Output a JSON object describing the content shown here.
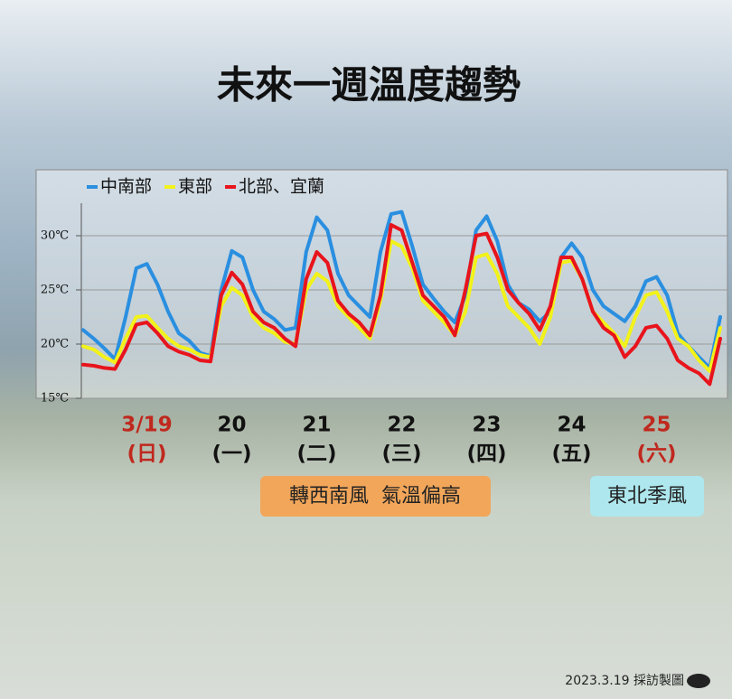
{
  "chart_data": {
    "type": "line",
    "title": "未來一週溫度趨勢",
    "categories": [
      null,
      null,
      null,
      null,
      null,
      null,
      "3/19",
      null,
      null,
      null,
      null,
      null,
      null,
      null,
      "20",
      null,
      null,
      null,
      null,
      null,
      null,
      null,
      "21",
      null,
      null,
      null,
      null,
      null,
      null,
      null,
      "22",
      null,
      null,
      null,
      null,
      null,
      null,
      null,
      "23",
      null,
      null,
      null,
      null,
      null,
      null,
      null,
      "24",
      null,
      null,
      null,
      null,
      null,
      null,
      null,
      "25",
      null,
      null,
      null,
      null,
      null,
      null
    ],
    "category_sublabels": [
      null,
      null,
      null,
      null,
      null,
      null,
      "(日)",
      null,
      null,
      null,
      null,
      null,
      null,
      null,
      "(一)",
      null,
      null,
      null,
      null,
      null,
      null,
      null,
      "(二)",
      null,
      null,
      null,
      null,
      null,
      null,
      null,
      "(三)",
      null,
      null,
      null,
      null,
      null,
      null,
      null,
      "(四)",
      null,
      null,
      null,
      null,
      null,
      null,
      null,
      "(五)",
      null,
      null,
      null,
      null,
      null,
      null,
      null,
      "(六)",
      null,
      null,
      null,
      null,
      null,
      null
    ],
    "category_colors": [
      null,
      null,
      null,
      null,
      null,
      null,
      "#c0281e",
      null,
      null,
      null,
      null,
      null,
      null,
      null,
      "#111111",
      null,
      null,
      null,
      null,
      null,
      null,
      null,
      "#111111",
      null,
      null,
      null,
      null,
      null,
      null,
      null,
      "#111111",
      null,
      null,
      null,
      null,
      null,
      null,
      null,
      "#111111",
      null,
      null,
      null,
      null,
      null,
      null,
      null,
      "#111111",
      null,
      null,
      null,
      null,
      null,
      null,
      null,
      "#c0281e",
      null,
      null,
      null,
      null,
      null,
      null
    ],
    "series": [
      {
        "name": "中南部",
        "color": "#2a8fe0",
        "values": [
          21.3,
          20.5,
          19.6,
          18.6,
          22.5,
          27.0,
          27.4,
          25.5,
          23.0,
          21.0,
          20.3,
          19.2,
          18.9,
          25.0,
          28.6,
          28.0,
          25.0,
          23.0,
          22.3,
          21.3,
          21.5,
          28.5,
          31.7,
          30.5,
          26.5,
          24.5,
          23.5,
          22.5,
          28.5,
          32.0,
          32.2,
          29.0,
          25.5,
          24.2,
          23.0,
          22.0,
          24.5,
          30.5,
          31.8,
          29.5,
          25.5,
          23.8,
          23.2,
          22.1,
          23.0,
          28.0,
          29.3,
          28.0,
          25.0,
          23.5,
          22.8,
          22.1,
          23.5,
          25.8,
          26.2,
          24.5,
          21.0,
          19.8,
          18.8,
          17.8,
          22.5
        ]
      },
      {
        "name": "東部",
        "color": "#f2f21a",
        "values": [
          19.8,
          19.5,
          18.8,
          18.3,
          20.5,
          22.5,
          22.6,
          21.5,
          20.5,
          19.8,
          19.5,
          19.0,
          18.8,
          23.5,
          25.2,
          24.5,
          22.5,
          21.5,
          21.0,
          20.2,
          20.0,
          25.0,
          26.5,
          25.8,
          23.5,
          22.5,
          21.5,
          20.5,
          24.0,
          29.5,
          29.0,
          27.0,
          24.0,
          23.0,
          22.0,
          20.8,
          23.0,
          28.0,
          28.3,
          26.5,
          23.5,
          22.5,
          21.5,
          20.0,
          22.5,
          27.5,
          27.7,
          26.0,
          23.0,
          22.0,
          21.0,
          19.8,
          22.5,
          24.5,
          24.8,
          23.0,
          20.5,
          19.8,
          18.5,
          17.5,
          21.5
        ]
      },
      {
        "name": "北部、宜蘭",
        "color": "#e8141c",
        "values": [
          18.1,
          18.0,
          17.8,
          17.7,
          19.5,
          21.8,
          22.0,
          21.0,
          19.8,
          19.3,
          19.0,
          18.5,
          18.4,
          24.5,
          26.6,
          25.5,
          23.0,
          22.0,
          21.5,
          20.5,
          19.8,
          26.0,
          28.5,
          27.5,
          24.0,
          22.8,
          22.0,
          20.8,
          24.5,
          31.0,
          30.5,
          27.5,
          24.5,
          23.5,
          22.5,
          20.8,
          25.0,
          30.0,
          30.2,
          28.0,
          25.0,
          23.8,
          22.8,
          21.3,
          23.5,
          28.0,
          28.0,
          26.0,
          23.0,
          21.5,
          20.8,
          18.8,
          19.8,
          21.5,
          21.7,
          20.5,
          18.5,
          17.8,
          17.3,
          16.3,
          20.5
        ]
      }
    ],
    "ylim": [
      15,
      36
    ],
    "yticks": [
      {
        "value": 15,
        "label": "15℃"
      },
      {
        "value": 20,
        "label": "20℃"
      },
      {
        "value": 25,
        "label": "25℃"
      },
      {
        "value": 30,
        "label": "30℃"
      }
    ],
    "grid": true,
    "annotations": [
      "轉西南風  氣溫偏高",
      "東北季風"
    ],
    "credit": "2023.3.19 採訪製圖"
  }
}
